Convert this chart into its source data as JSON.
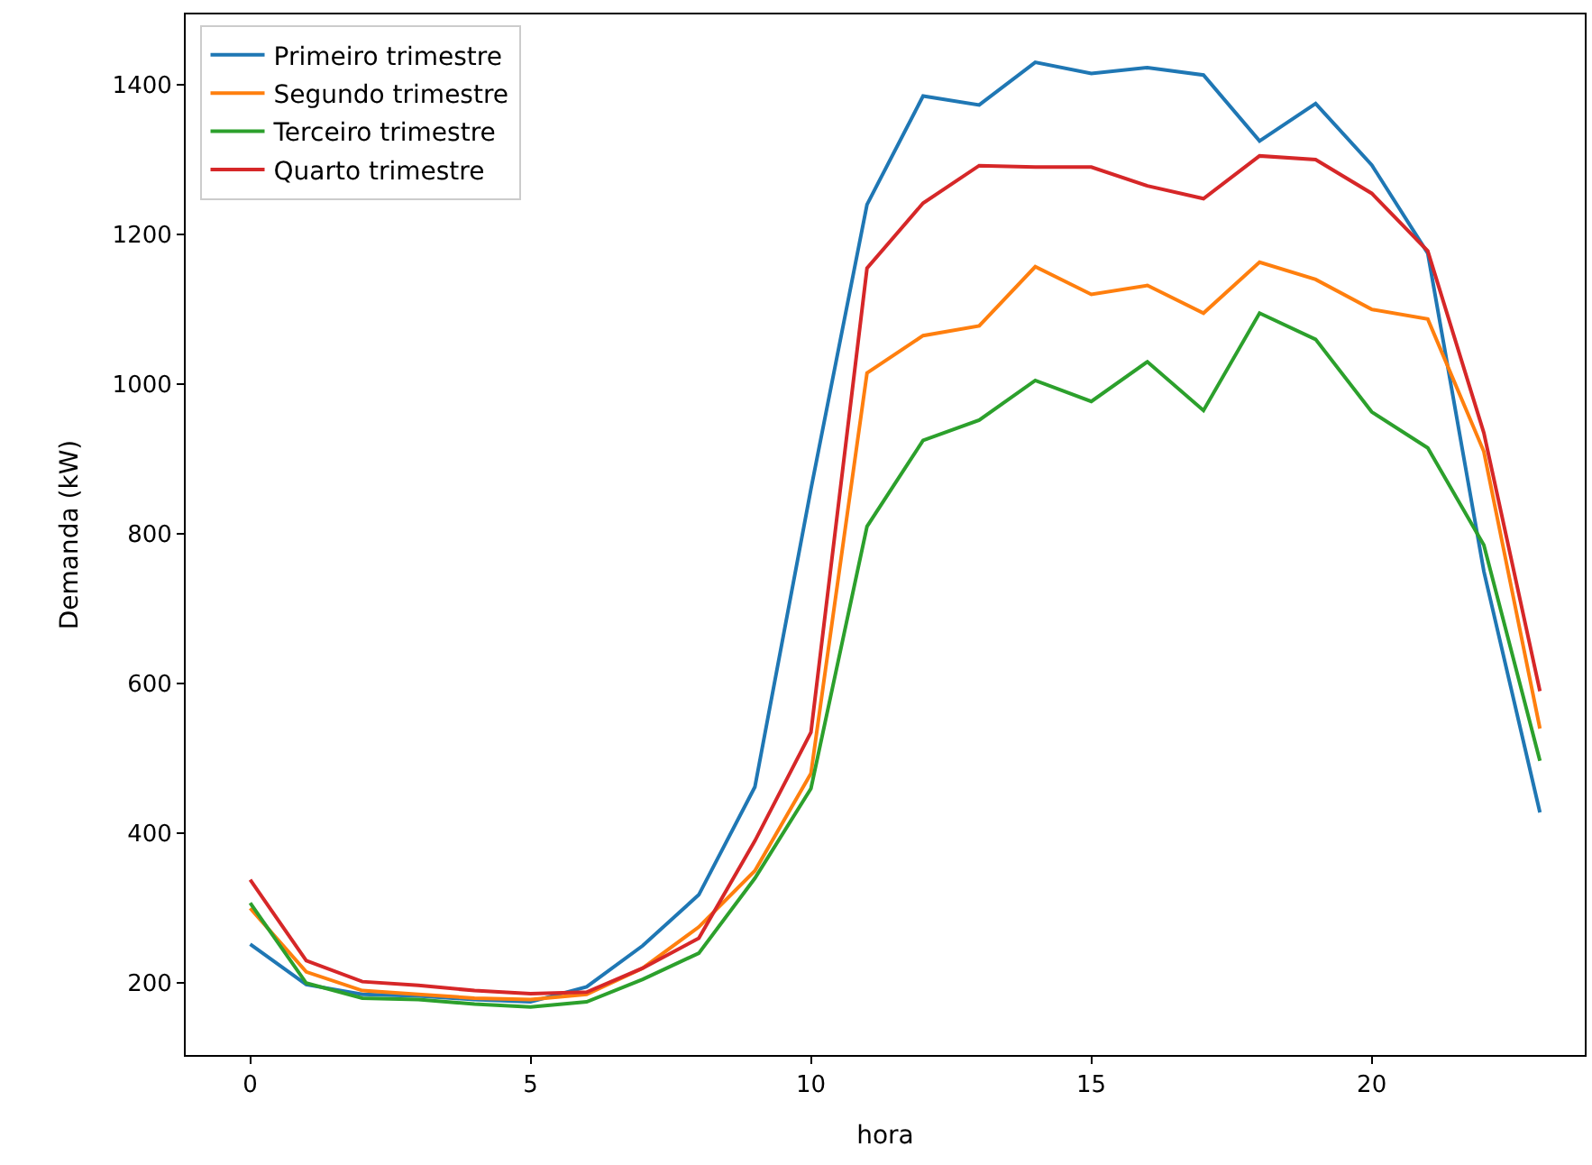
{
  "chart_data": {
    "type": "line",
    "xlabel": "hora",
    "ylabel": "Demanda (kW)",
    "x": [
      0,
      1,
      2,
      3,
      4,
      5,
      6,
      7,
      8,
      9,
      10,
      11,
      12,
      13,
      14,
      15,
      16,
      17,
      18,
      19,
      20,
      21,
      22,
      23
    ],
    "series": [
      {
        "name": "Primeiro trimestre",
        "color": "#1f77b4",
        "values": [
          252,
          198,
          185,
          183,
          178,
          175,
          195,
          250,
          318,
          462,
          860,
          1240,
          1385,
          1373,
          1430,
          1415,
          1423,
          1413,
          1325,
          1375,
          1293,
          1175,
          750,
          428
        ]
      },
      {
        "name": "Segundo trimestre",
        "color": "#ff7f0e",
        "values": [
          300,
          215,
          190,
          185,
          180,
          178,
          185,
          220,
          275,
          350,
          480,
          1015,
          1065,
          1078,
          1157,
          1120,
          1132,
          1095,
          1163,
          1140,
          1100,
          1087,
          910,
          540
        ]
      },
      {
        "name": "Terceiro trimestre",
        "color": "#2ca02c",
        "values": [
          307,
          200,
          180,
          178,
          172,
          168,
          175,
          205,
          240,
          340,
          460,
          810,
          925,
          952,
          1005,
          977,
          1030,
          965,
          1095,
          1060,
          963,
          915,
          785,
          497
        ]
      },
      {
        "name": "Quarto trimestre",
        "color": "#d62728",
        "values": [
          338,
          230,
          202,
          197,
          190,
          186,
          188,
          220,
          260,
          390,
          535,
          1155,
          1242,
          1292,
          1290,
          1290,
          1265,
          1248,
          1305,
          1300,
          1255,
          1178,
          935,
          590
        ]
      }
    ],
    "xlim": [
      -1.15,
      23.8
    ],
    "xticks": [
      0,
      5,
      10,
      15,
      20
    ],
    "ylim": [
      104,
      1494
    ],
    "yticks": [
      200,
      400,
      600,
      800,
      1000,
      1200,
      1400
    ],
    "legend": "top left",
    "marker": "none",
    "line_style": "solid"
  }
}
